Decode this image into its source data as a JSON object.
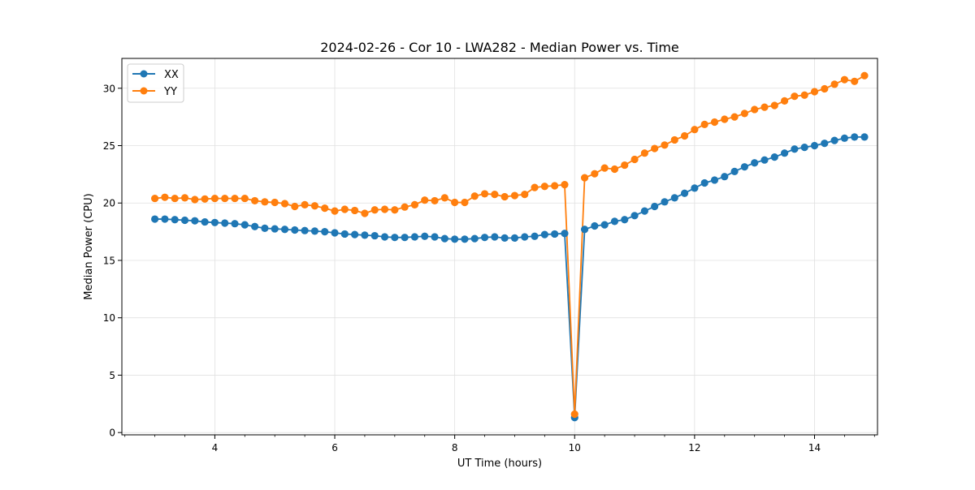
{
  "chart_data": {
    "type": "line",
    "title": "2024-02-26 - Cor 10 - LWA282 - Median Power vs. Time",
    "xlabel": "UT Time (hours)",
    "ylabel": "Median Power (CPU)",
    "xlim": [
      2.45,
      15.05
    ],
    "ylim": [
      -0.2,
      32.6
    ],
    "xticks": [
      4,
      6,
      8,
      10,
      12,
      14
    ],
    "xtick_labels": [
      "4",
      "6",
      "8",
      "10",
      "12",
      "14"
    ],
    "yticks": [
      0,
      5,
      10,
      15,
      20,
      25,
      30
    ],
    "ytick_labels": [
      "0",
      "5",
      "10",
      "15",
      "20",
      "25",
      "30"
    ],
    "minor_xtick_step": 0.5,
    "grid": true,
    "legend_position": "upper-left",
    "marker": "circle",
    "x": [
      3.0,
      3.1667,
      3.3333,
      3.5,
      3.6667,
      3.8333,
      4.0,
      4.1667,
      4.3333,
      4.5,
      4.6667,
      4.8333,
      5.0,
      5.1667,
      5.3333,
      5.5,
      5.6667,
      5.8333,
      6.0,
      6.1667,
      6.3333,
      6.5,
      6.6667,
      6.8333,
      7.0,
      7.1667,
      7.3333,
      7.5,
      7.6667,
      7.8333,
      8.0,
      8.1667,
      8.3333,
      8.5,
      8.6667,
      8.8333,
      9.0,
      9.1667,
      9.3333,
      9.5,
      9.6667,
      9.8333,
      10.0,
      10.1667,
      10.3333,
      10.5,
      10.6667,
      10.8333,
      11.0,
      11.1667,
      11.3333,
      11.5,
      11.6667,
      11.8333,
      12.0,
      12.1667,
      12.3333,
      12.5,
      12.6667,
      12.8333,
      13.0,
      13.1667,
      13.3333,
      13.5,
      13.6667,
      13.8333,
      14.0,
      14.1667,
      14.3333,
      14.5,
      14.6667,
      14.8333
    ],
    "series": [
      {
        "name": "XX",
        "color": "#1f77b4",
        "values": [
          18.6,
          18.6,
          18.55,
          18.5,
          18.45,
          18.35,
          18.3,
          18.25,
          18.2,
          18.1,
          17.95,
          17.8,
          17.75,
          17.7,
          17.65,
          17.6,
          17.55,
          17.5,
          17.4,
          17.3,
          17.25,
          17.2,
          17.15,
          17.05,
          17.0,
          17.0,
          17.05,
          17.1,
          17.05,
          16.9,
          16.85,
          16.85,
          16.9,
          17.0,
          17.05,
          16.95,
          16.95,
          17.05,
          17.1,
          17.25,
          17.3,
          17.35,
          1.3,
          17.7,
          18.0,
          18.1,
          18.4,
          18.55,
          18.9,
          19.3,
          19.7,
          20.1,
          20.45,
          20.85,
          21.3,
          21.75,
          22.0,
          22.3,
          22.75,
          23.15,
          23.5,
          23.75,
          24.0,
          24.35,
          24.7,
          24.85,
          25.0,
          25.2,
          25.45,
          25.65,
          25.75,
          25.75
        ]
      },
      {
        "name": "YY",
        "color": "#ff7f0e",
        "values": [
          20.4,
          20.5,
          20.4,
          20.45,
          20.3,
          20.35,
          20.4,
          20.4,
          20.4,
          20.4,
          20.2,
          20.1,
          20.05,
          19.95,
          19.7,
          19.85,
          19.75,
          19.55,
          19.3,
          19.45,
          19.35,
          19.1,
          19.4,
          19.45,
          19.4,
          19.65,
          19.85,
          20.25,
          20.2,
          20.45,
          20.05,
          20.05,
          20.6,
          20.8,
          20.75,
          20.55,
          20.65,
          20.75,
          21.35,
          21.45,
          21.5,
          21.6,
          1.6,
          22.2,
          22.55,
          23.05,
          22.95,
          23.3,
          23.8,
          24.35,
          24.75,
          25.05,
          25.5,
          25.85,
          26.4,
          26.85,
          27.05,
          27.3,
          27.5,
          27.8,
          28.15,
          28.35,
          28.5,
          28.9,
          29.3,
          29.4,
          29.7,
          29.95,
          30.35,
          30.75,
          30.6,
          31.1
        ]
      }
    ]
  }
}
